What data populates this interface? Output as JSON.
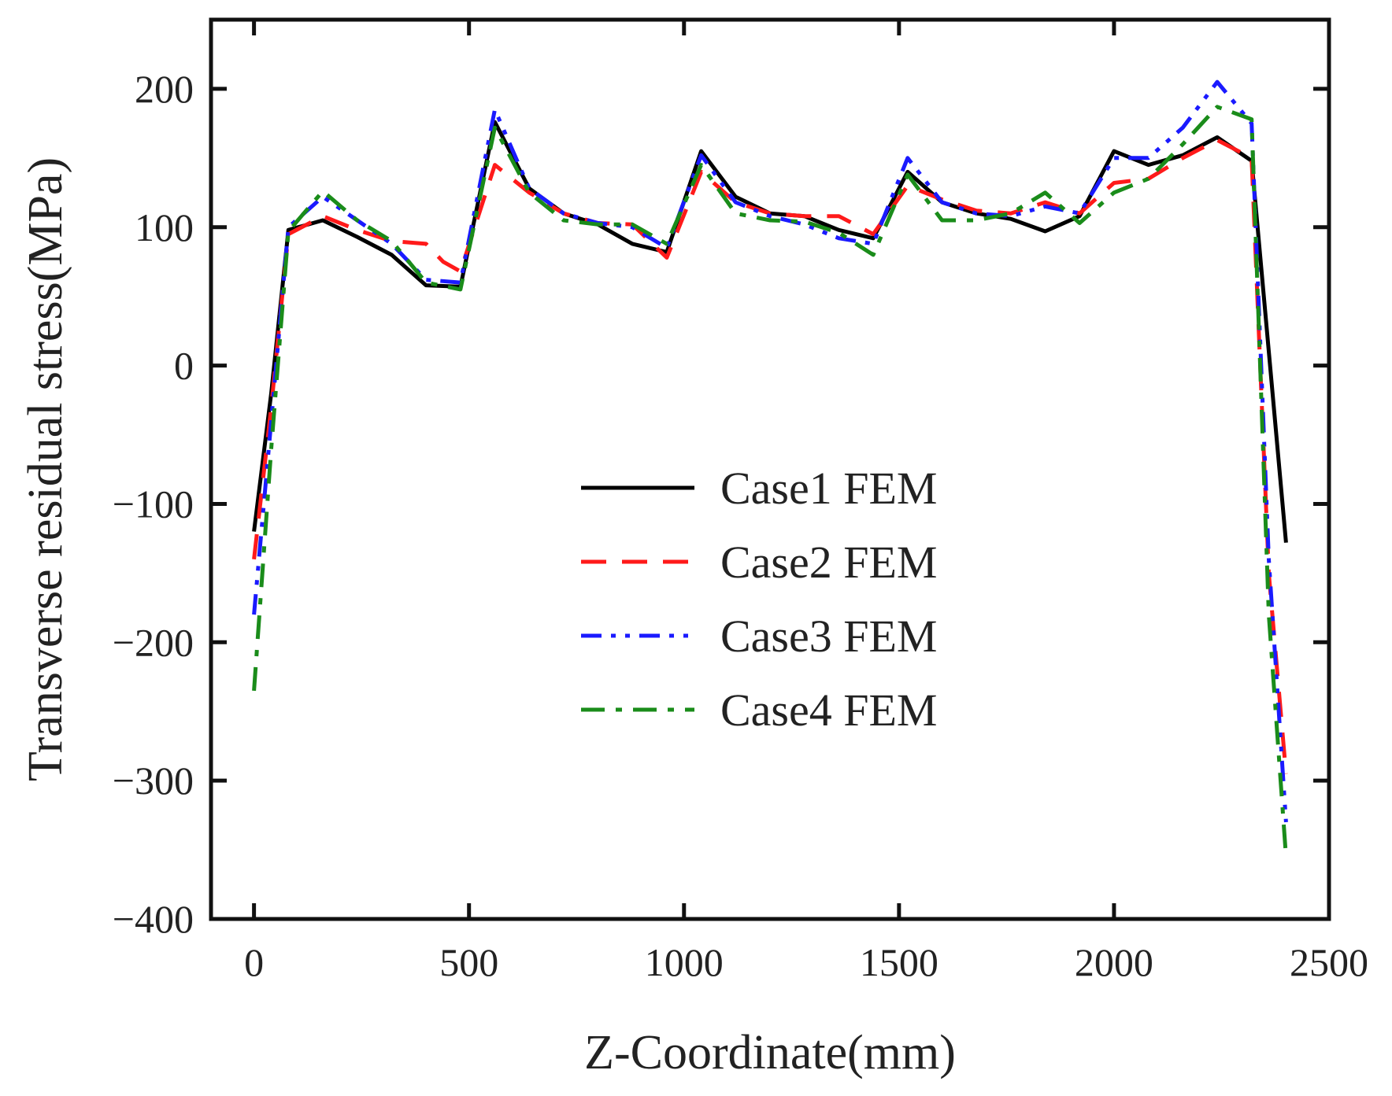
{
  "chart_data": {
    "type": "line",
    "title": "",
    "xlabel": "Z-Coordinate(mm)",
    "ylabel": "Transverse residual stress(MPa)",
    "xlim": [
      -100,
      2500
    ],
    "ylim": [
      -400,
      250
    ],
    "xticks": [
      0,
      500,
      1000,
      1500,
      2000,
      2500
    ],
    "xtick_labels": [
      "0",
      "500",
      "1000",
      "1500",
      "2000",
      "2500"
    ],
    "yticks": [
      -400,
      -300,
      -200,
      -100,
      0,
      100,
      200
    ],
    "ytick_labels": [
      "−400",
      "−300",
      "−200",
      "−100",
      "0",
      "100",
      "200"
    ],
    "grid": false,
    "legend_position": "center",
    "series": [
      {
        "name": "Case1 FEM",
        "color": "#000000",
        "style": "solid",
        "x": [
          0,
          40,
          80,
          160,
          240,
          320,
          400,
          480,
          560,
          640,
          720,
          800,
          880,
          960,
          1040,
          1120,
          1200,
          1280,
          1360,
          1440,
          1520,
          1600,
          1680,
          1760,
          1840,
          1920,
          2000,
          2080,
          2160,
          2240,
          2320,
          2400
        ],
        "y": [
          -120,
          -20,
          98,
          105,
          93,
          80,
          58,
          57,
          176,
          128,
          110,
          102,
          88,
          82,
          155,
          122,
          110,
          108,
          98,
          92,
          140,
          118,
          110,
          106,
          97,
          108,
          155,
          145,
          152,
          165,
          148,
          -128
        ]
      },
      {
        "name": "Case2 FEM",
        "color": "#ff1a1a",
        "style": "dashed",
        "x": [
          0,
          40,
          80,
          160,
          240,
          320,
          400,
          440,
          480,
          560,
          640,
          720,
          800,
          880,
          960,
          1040,
          1120,
          1200,
          1280,
          1360,
          1440,
          1520,
          1600,
          1680,
          1760,
          1840,
          1920,
          2000,
          2080,
          2160,
          2240,
          2320,
          2360,
          2400
        ],
        "y": [
          -140,
          -30,
          95,
          108,
          98,
          90,
          88,
          75,
          68,
          145,
          125,
          110,
          103,
          102,
          78,
          140,
          118,
          110,
          108,
          108,
          95,
          130,
          120,
          112,
          110,
          118,
          110,
          132,
          135,
          150,
          163,
          150,
          -150,
          -295
        ]
      },
      {
        "name": "Case3 FEM",
        "color": "#1a1aff",
        "style": "dashdotdot",
        "x": [
          0,
          40,
          80,
          160,
          240,
          320,
          400,
          480,
          560,
          640,
          720,
          800,
          880,
          960,
          1040,
          1120,
          1200,
          1280,
          1360,
          1440,
          1520,
          1600,
          1680,
          1760,
          1840,
          1920,
          2000,
          2080,
          2160,
          2240,
          2320,
          2360,
          2400
        ],
        "y": [
          -180,
          -40,
          100,
          122,
          105,
          88,
          62,
          60,
          185,
          128,
          110,
          103,
          100,
          85,
          152,
          118,
          108,
          102,
          92,
          88,
          150,
          118,
          110,
          108,
          115,
          110,
          150,
          150,
          172,
          205,
          175,
          -140,
          -330
        ]
      },
      {
        "name": "Case4 FEM",
        "color": "#1a8c1a",
        "style": "dashdot",
        "x": [
          0,
          40,
          80,
          160,
          240,
          320,
          400,
          480,
          560,
          640,
          720,
          800,
          880,
          960,
          1040,
          1120,
          1200,
          1280,
          1360,
          1440,
          1520,
          1600,
          1680,
          1760,
          1840,
          1920,
          2000,
          2080,
          2160,
          2240,
          2320,
          2360,
          2400
        ],
        "y": [
          -235,
          -60,
          97,
          126,
          105,
          90,
          60,
          55,
          172,
          125,
          105,
          102,
          102,
          88,
          145,
          110,
          105,
          104,
          96,
          80,
          138,
          105,
          105,
          110,
          125,
          103,
          125,
          135,
          160,
          187,
          178,
          -180,
          -355
        ]
      }
    ]
  }
}
